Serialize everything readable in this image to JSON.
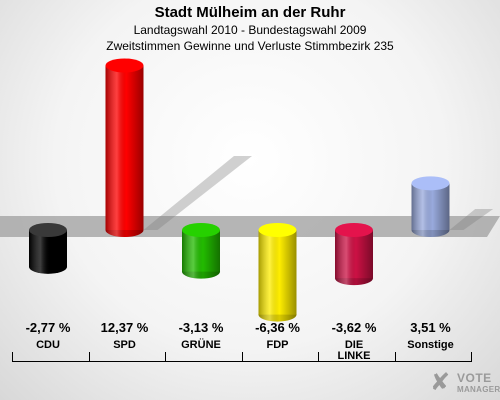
{
  "header": {
    "title": "Stadt Mülheim an der Ruhr",
    "subtitle1": "Landtagswahl 2010 - Bundestagswahl 2009",
    "subtitle2": "Zweitstimmen Gewinne und Verluste Stimmbezirk 235"
  },
  "chart_data": {
    "type": "bar",
    "title": "Stadt Mülheim an der Ruhr",
    "categories": [
      "CDU",
      "SPD",
      "GRÜNE",
      "FDP",
      "DIE LINKE",
      "Sonstige"
    ],
    "values": [
      -2.77,
      12.37,
      -3.13,
      -6.36,
      -3.62,
      3.51
    ],
    "value_labels": [
      "-2,77 %",
      "12,37 %",
      "-3,13 %",
      "-6,36 %",
      "-3,62 %",
      "3,51 %"
    ],
    "colors": [
      "#000000",
      "#ff0000",
      "#22bb00",
      "#ffee00",
      "#cc1144",
      "#99aadd"
    ],
    "xlabel": "",
    "ylabel": "",
    "grid": false
  },
  "logo": {
    "line1": "VOTE",
    "line2": "MANAGER"
  }
}
